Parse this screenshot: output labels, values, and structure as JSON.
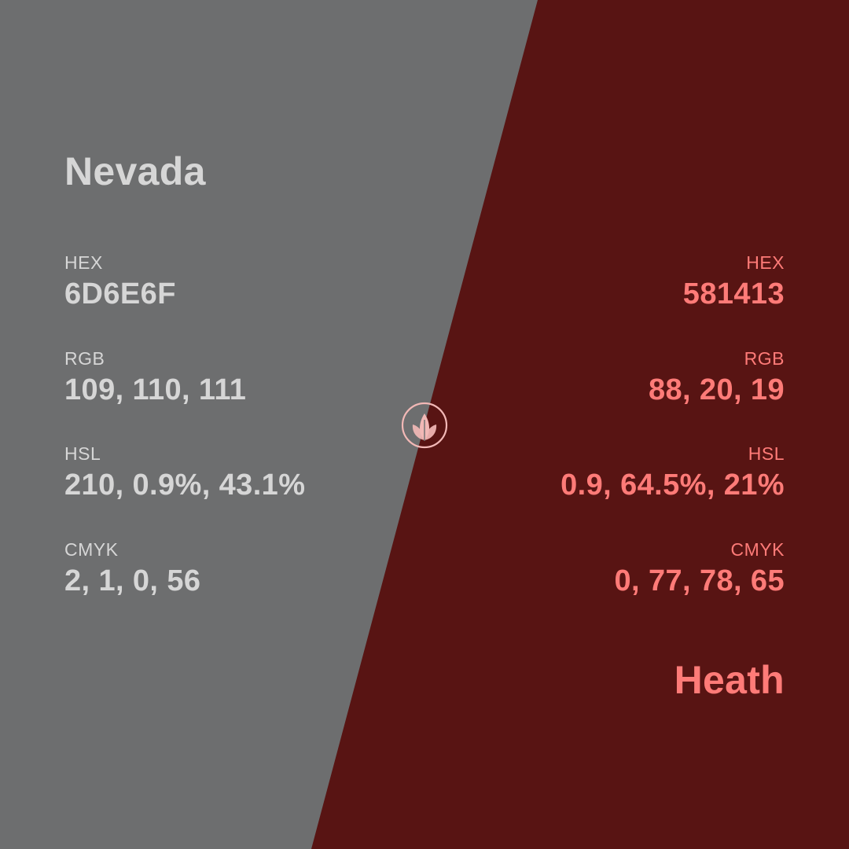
{
  "colors": {
    "left_background": "#6D6E6F",
    "right_background": "#581413",
    "left_text": "#d6d6d6",
    "right_text": "#ff7b78",
    "logo": "#f2b8b6"
  },
  "left": {
    "name": "Nevada",
    "fields": [
      {
        "label": "HEX",
        "value": "6D6E6F"
      },
      {
        "label": "RGB",
        "value": "109, 110, 111"
      },
      {
        "label": "HSL",
        "value": "210, 0.9%, 43.1%"
      },
      {
        "label": "CMYK",
        "value": "2, 1, 0, 56"
      }
    ]
  },
  "right": {
    "name": "Heath",
    "fields": [
      {
        "label": "HEX",
        "value": "581413"
      },
      {
        "label": "RGB",
        "value": "88, 20, 19"
      },
      {
        "label": "HSL",
        "value": "0.9, 64.5%, 21%"
      },
      {
        "label": "CMYK",
        "value": "0, 77, 78, 65"
      }
    ]
  },
  "logo": {
    "icon": "leaf-sprout-icon"
  }
}
